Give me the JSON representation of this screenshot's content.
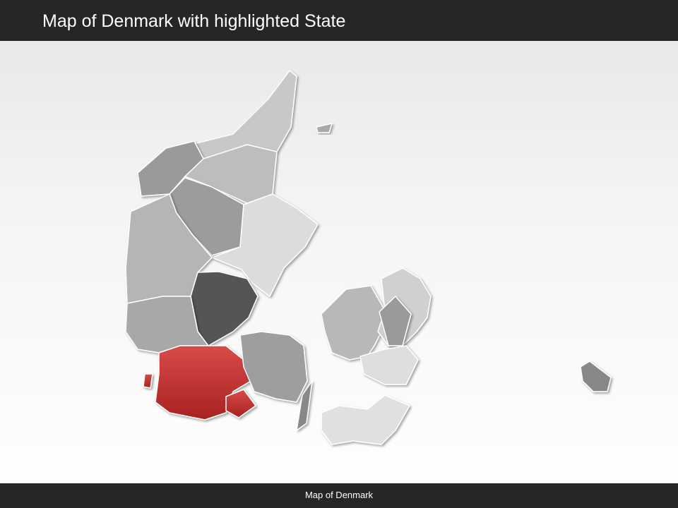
{
  "header": {
    "title": "Map of Denmark with highlighted State"
  },
  "footer": {
    "caption": "Map of Denmark"
  },
  "map": {
    "country": "Denmark",
    "highlight_color": "#c0302f",
    "base_colors": [
      "#c8c8c8",
      "#9a9a9a",
      "#dcdcdc",
      "#555555"
    ]
  }
}
